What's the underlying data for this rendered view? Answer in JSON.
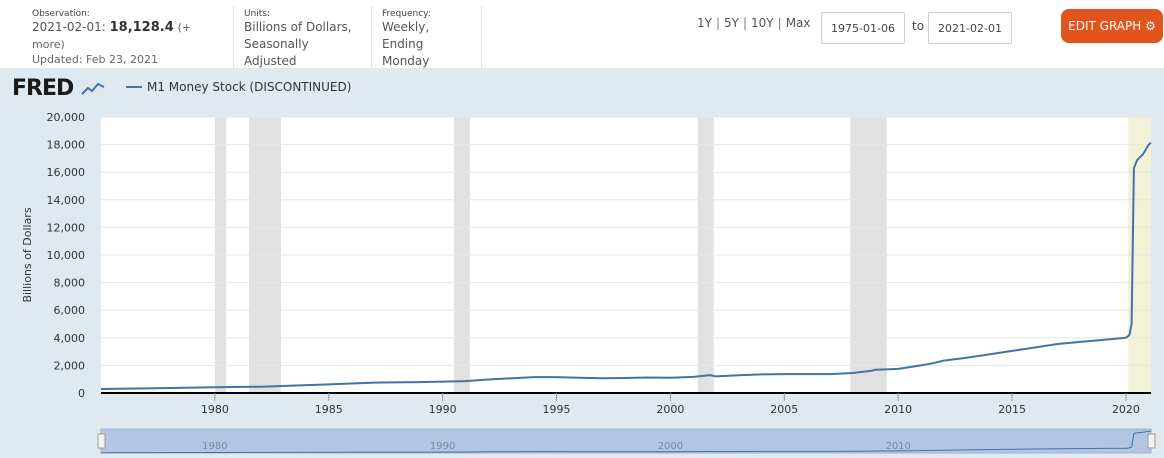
{
  "observation": {
    "label": "Observation:",
    "date_prefix": "2021-02-01:",
    "value": "18,128.4",
    "more": "(+ more)",
    "updated": "Updated: Feb 23, 2021"
  },
  "units": {
    "label": "Units:",
    "line1": "Billions of Dollars,",
    "line2": "Seasonally Adjusted"
  },
  "frequency": {
    "label": "Frequency:",
    "line1": "Weekly,",
    "line2": "Ending Monday"
  },
  "ranges": {
    "y1": "1Y",
    "y5": "5Y",
    "y10": "10Y",
    "max": "Max",
    "sep": "|"
  },
  "date_range": {
    "start": "1975-01-06",
    "to_label": "to",
    "end": "2021-02-01"
  },
  "edit_button": {
    "label": "EDIT GRAPH",
    "icon": "gear-icon",
    "color": "#e1541b"
  },
  "logo": {
    "text": "FRED",
    "icon": "fred-chart-icon"
  },
  "colors": {
    "series": "#4572a7",
    "recession": "#e1e1e1",
    "highlight": "#f2f2d8",
    "background": "#e1e9f0"
  },
  "chart_data": {
    "type": "line",
    "title": "",
    "xlabel": "",
    "ylabel": "Billions of Dollars",
    "ylim": [
      0,
      20000
    ],
    "xlim": [
      1975.0,
      2021.1
    ],
    "y_ticks": [
      "0",
      "2,000",
      "4,000",
      "6,000",
      "8,000",
      "10,000",
      "12,000",
      "14,000",
      "16,000",
      "18,000",
      "20,000"
    ],
    "x_ticks": [
      "1980",
      "1985",
      "1990",
      "1995",
      "2000",
      "2005",
      "2010",
      "2015",
      "2020"
    ],
    "grid": true,
    "legend": "top-left",
    "recessions": [
      [
        1980.0,
        1980.5
      ],
      [
        1981.5,
        1982.9
      ],
      [
        1990.5,
        1991.2
      ],
      [
        2001.2,
        2001.9
      ],
      [
        2007.9,
        2009.5
      ],
      [
        2020.1,
        2021.1
      ]
    ],
    "series": [
      {
        "name": "M1 Money Stock (DISCONTINUED)",
        "x": [
          1975.0,
          1977.0,
          1980.0,
          1982.0,
          1985.0,
          1987.0,
          1989.0,
          1991.0,
          1992.0,
          1994.0,
          1995.0,
          1996.0,
          1997.0,
          1998.0,
          1999.0,
          2000.0,
          2001.0,
          2001.75,
          2002.0,
          2003.0,
          2004.0,
          2005.0,
          2006.0,
          2007.0,
          2008.0,
          2008.8,
          2009.0,
          2010.0,
          2011.0,
          2011.5,
          2012.0,
          2013.0,
          2014.0,
          2015.0,
          2016.0,
          2017.0,
          2018.0,
          2019.0,
          2020.0,
          2020.15,
          2020.25,
          2020.35,
          2020.5,
          2020.75,
          2021.0,
          2021.1
        ],
        "values": [
          290,
          330,
          410,
          460,
          620,
          750,
          790,
          860,
          980,
          1150,
          1150,
          1100,
          1070,
          1090,
          1120,
          1100,
          1170,
          1300,
          1200,
          1280,
          1350,
          1370,
          1370,
          1370,
          1450,
          1600,
          1680,
          1750,
          2000,
          2150,
          2350,
          2550,
          2800,
          3050,
          3300,
          3550,
          3700,
          3850,
          4000,
          4200,
          5000,
          16300,
          16900,
          17300,
          18000,
          18128
        ]
      }
    ]
  },
  "navigator": {
    "x_ticks": [
      "1980",
      "1990",
      "2000",
      "2010"
    ]
  }
}
